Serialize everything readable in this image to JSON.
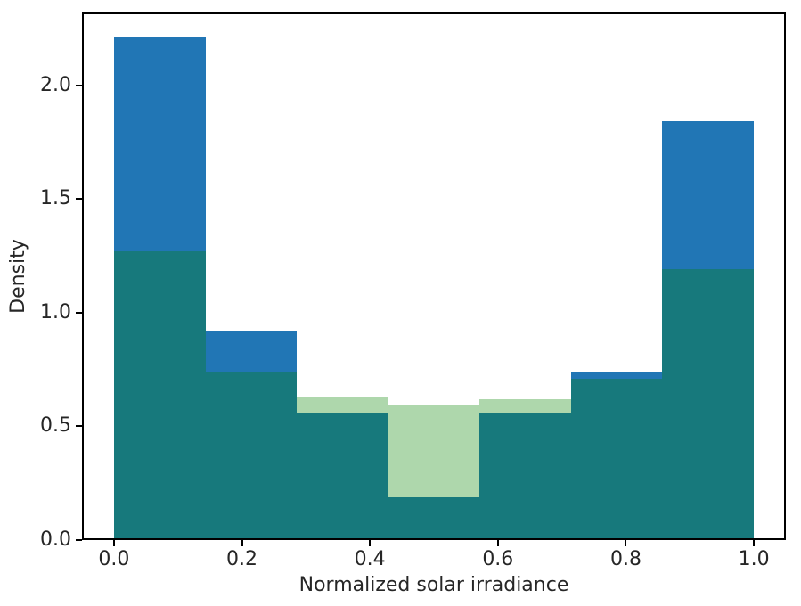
{
  "figure": {
    "background_color": "#ffffff",
    "spine_color": "#000000",
    "text_color": "#262626"
  },
  "chart_data": {
    "type": "bar",
    "subtype": "overlapping-histogram",
    "title": "",
    "xlabel": "Normalized solar irradiance",
    "ylabel": "Density",
    "xlim": [
      -0.05,
      1.05
    ],
    "ylim": [
      0,
      2.32
    ],
    "grid": false,
    "legend": null,
    "bin_edges": [
      0.0,
      0.143,
      0.286,
      0.429,
      0.571,
      0.714,
      0.857,
      1.0
    ],
    "series": [
      {
        "name": "blue-histogram",
        "color": "#2176b5",
        "values": [
          2.21,
          0.92,
          0.56,
          0.19,
          0.56,
          0.74,
          1.84
        ]
      },
      {
        "name": "green-histogram",
        "color": "#aed7ac",
        "values": [
          1.27,
          0.74,
          0.63,
          0.59,
          0.62,
          0.71,
          1.19
        ]
      }
    ],
    "overlap_color": "#17797c",
    "xticks": [
      {
        "label": "0.0",
        "value": 0.0
      },
      {
        "label": "0.2",
        "value": 0.2
      },
      {
        "label": "0.4",
        "value": 0.4
      },
      {
        "label": "0.6",
        "value": 0.6
      },
      {
        "label": "0.8",
        "value": 0.8
      },
      {
        "label": "1.0",
        "value": 1.0
      }
    ],
    "yticks": [
      {
        "label": "0.0",
        "value": 0.0
      },
      {
        "label": "0.5",
        "value": 0.5
      },
      {
        "label": "1.0",
        "value": 1.0
      },
      {
        "label": "1.5",
        "value": 1.5
      },
      {
        "label": "2.0",
        "value": 2.0
      }
    ]
  }
}
